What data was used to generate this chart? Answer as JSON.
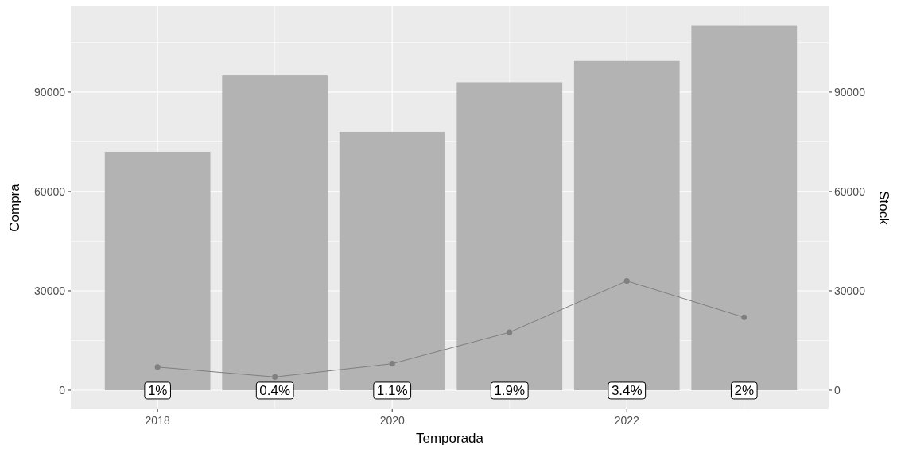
{
  "chart_data": {
    "type": "bar",
    "xlabel": "Temporada",
    "ylabel": "Compra",
    "y2label": "Stock",
    "x": [
      2018,
      2019,
      2020,
      2021,
      2022,
      2023
    ],
    "xlim": [
      2017.26,
      2023.72
    ],
    "xticks": [
      2018,
      2020,
      2022
    ],
    "ylim": [
      -5760,
      115900
    ],
    "yticks": [
      0,
      30000,
      60000,
      90000
    ],
    "y2lim": [
      -5760,
      115900
    ],
    "y2ticks": [
      0,
      30000,
      60000,
      90000
    ],
    "grid": true,
    "marker": "circle",
    "line_style": "solid",
    "series": [
      {
        "color": "#b3b3b3",
        "values": [
          72000,
          95000,
          78000,
          93000,
          99400,
          110000
        ]
      },
      {
        "type": "line",
        "axis": "y2",
        "color": "#7f7f7f",
        "values": [
          7000,
          4000,
          8000,
          17500,
          33000,
          22000
        ]
      }
    ],
    "annotations": [
      {
        "text": "1%",
        "x": 2018,
        "y": 0
      },
      {
        "text": "0.4%",
        "x": 2019,
        "y": 0
      },
      {
        "text": "1.1%",
        "x": 2020,
        "y": 0
      },
      {
        "text": "1.9%",
        "x": 2021,
        "y": 0
      },
      {
        "text": "3.4%",
        "x": 2022,
        "y": 0
      },
      {
        "text": "2%",
        "x": 2023,
        "y": 0
      }
    ]
  }
}
